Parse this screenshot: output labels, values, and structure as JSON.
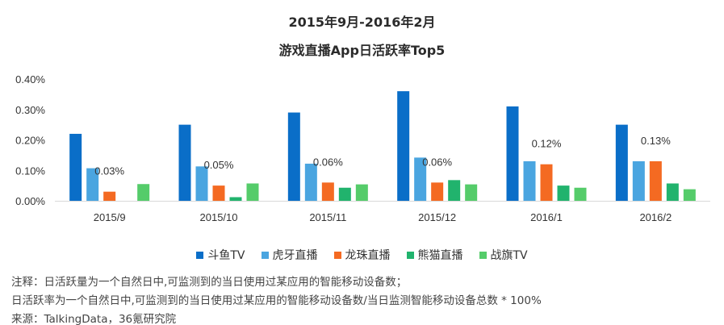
{
  "title_line1": "2015年9月-2016年2月",
  "title_line2": "游戏直播App日活跃率Top5",
  "chart_data": {
    "type": "bar",
    "categories": [
      "2015/9",
      "2015/10",
      "2015/11",
      "2015/12",
      "2016/1",
      "2016/2"
    ],
    "series": [
      {
        "name": "斗鱼TV",
        "color": "#0a6ec8",
        "values": [
          0.22,
          0.25,
          0.29,
          0.36,
          0.31,
          0.25
        ]
      },
      {
        "name": "虎牙直播",
        "color": "#4aa5e0",
        "values": [
          0.107,
          0.113,
          0.122,
          0.142,
          0.13,
          0.13
        ]
      },
      {
        "name": "龙珠直播",
        "color": "#f46a22",
        "values": [
          0.03,
          0.05,
          0.06,
          0.06,
          0.12,
          0.13
        ]
      },
      {
        "name": "熊猫直播",
        "color": "#21b36d",
        "values": [
          0.0,
          0.012,
          0.043,
          0.068,
          0.05,
          0.057
        ]
      },
      {
        "name": "战旗TV",
        "color": "#55cc6a",
        "values": [
          0.055,
          0.057,
          0.054,
          0.054,
          0.043,
          0.038
        ]
      }
    ],
    "data_labels": [
      {
        "category": "2015/9",
        "series": "龙珠直播",
        "text": "0.03%"
      },
      {
        "category": "2015/10",
        "series": "龙珠直播",
        "text": "0.05%"
      },
      {
        "category": "2015/11",
        "series": "龙珠直播",
        "text": "0.06%"
      },
      {
        "category": "2015/12",
        "series": "龙珠直播",
        "text": "0.06%"
      },
      {
        "category": "2016/1",
        "series": "龙珠直播",
        "text": "0.12%"
      },
      {
        "category": "2016/2",
        "series": "龙珠直播",
        "text": "0.13%"
      }
    ],
    "yticks": [
      "0.00%",
      "0.10%",
      "0.20%",
      "0.30%",
      "0.40%"
    ],
    "ylim": [
      0,
      0.4
    ],
    "grid": false,
    "legend_position": "bottom"
  },
  "notes": {
    "line1": "注释：日活跃量为一个自然日中,可监测到的当日使用过某应用的智能移动设备数；",
    "line2": "日活跃率为一个自然日中,可监测到的当日使用过某应用的智能移动设备数/当日监测智能移动设备总数 * 100%",
    "line3": "来源：TalkingData，36氪研究院"
  }
}
